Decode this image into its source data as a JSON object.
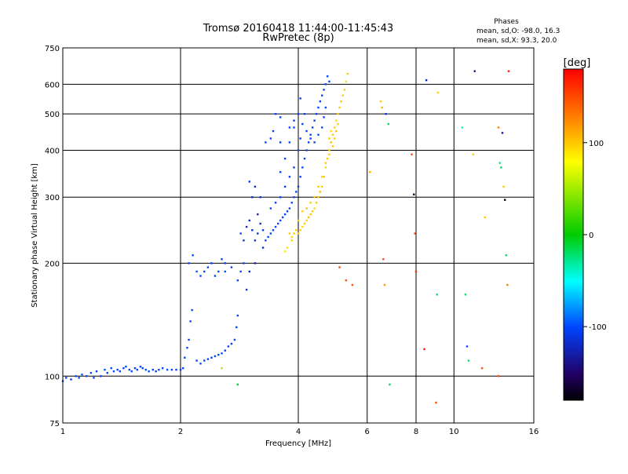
{
  "chart_data": {
    "type": "scatter",
    "title": "Tromsø 20160418 11:44:00-11:45:43",
    "subtitle": "RwPretec (8p)",
    "xlabel": "Frequency [MHz]",
    "ylabel": "Stationary phase Virtual Height [km]",
    "x_scale": "log",
    "y_scale": "log",
    "xlim": [
      1,
      16
    ],
    "ylim": [
      75,
      750
    ],
    "grid": true,
    "x_ticks": [
      1,
      2,
      4,
      6,
      8,
      10,
      16
    ],
    "x_tick_labels": [
      "1",
      "2",
      "4",
      "6",
      "8",
      "10",
      "16"
    ],
    "y_ticks": [
      75,
      100,
      200,
      300,
      400,
      500,
      600,
      750
    ],
    "y_tick_labels": [
      "75",
      "100",
      "200",
      "300",
      "400",
      "500",
      "600",
      "750"
    ],
    "phase_stats": {
      "heading": "Phases",
      "line_o": "mean, sd,O: -98.0, 16.3",
      "line_x": "mean, sd,X:  93.3, 20.0"
    },
    "colorbar": {
      "label": "[deg]",
      "range": [
        -180,
        180
      ],
      "ticks": [
        100,
        0,
        -100
      ],
      "tick_labels": [
        "100",
        "0",
        "-100"
      ]
    },
    "series": [
      {
        "note": "O-mode traces (phase about -100 deg), blue",
        "points": [
          [
            1.0,
            97,
            -100
          ],
          [
            1.02,
            99,
            -100
          ],
          [
            1.05,
            98,
            -102
          ],
          [
            1.08,
            100,
            -98
          ],
          [
            1.1,
            99,
            -100
          ],
          [
            1.12,
            101,
            -95
          ],
          [
            1.15,
            100,
            -100
          ],
          [
            1.18,
            102,
            -97
          ],
          [
            1.2,
            99,
            -100
          ],
          [
            1.22,
            103,
            -103
          ],
          [
            1.25,
            100,
            -100
          ],
          [
            1.28,
            104,
            -96
          ],
          [
            1.3,
            102,
            -100
          ],
          [
            1.33,
            105,
            -100
          ],
          [
            1.35,
            103,
            -98
          ],
          [
            1.38,
            104,
            -100
          ],
          [
            1.4,
            103,
            -102
          ],
          [
            1.43,
            105,
            -100
          ],
          [
            1.45,
            106,
            -99
          ],
          [
            1.48,
            104,
            -100
          ],
          [
            1.5,
            103,
            -97
          ],
          [
            1.53,
            105,
            -100
          ],
          [
            1.55,
            104,
            -100
          ],
          [
            1.58,
            106,
            -101
          ],
          [
            1.6,
            105,
            -100
          ],
          [
            1.63,
            104,
            -100
          ],
          [
            1.66,
            103,
            -98
          ],
          [
            1.7,
            104,
            -100
          ],
          [
            1.73,
            103,
            -102
          ],
          [
            1.76,
            104,
            -100
          ],
          [
            1.8,
            105,
            -100
          ],
          [
            1.85,
            104,
            -97
          ],
          [
            1.9,
            104,
            -100
          ],
          [
            1.95,
            104,
            -100
          ],
          [
            2.0,
            104,
            -100
          ],
          [
            2.03,
            105,
            -100
          ],
          [
            2.05,
            112,
            -101
          ],
          [
            2.08,
            119,
            -99
          ],
          [
            2.1,
            125,
            -100
          ],
          [
            2.12,
            140,
            -100
          ],
          [
            2.14,
            150,
            -100
          ],
          [
            2.2,
            110,
            -100
          ],
          [
            2.25,
            108,
            -99
          ],
          [
            2.3,
            110,
            -100
          ],
          [
            2.35,
            111,
            -100
          ],
          [
            2.4,
            112,
            -103
          ],
          [
            2.45,
            113,
            -100
          ],
          [
            2.5,
            114,
            -100
          ],
          [
            2.55,
            115,
            -98
          ],
          [
            2.6,
            117,
            -100
          ],
          [
            2.65,
            120,
            -100
          ],
          [
            2.7,
            122,
            -100
          ],
          [
            2.75,
            125,
            -99
          ],
          [
            2.78,
            135,
            -100
          ],
          [
            2.8,
            145,
            -100
          ],
          [
            2.6,
            190,
            -95
          ],
          [
            2.6,
            200,
            -100
          ],
          [
            2.55,
            205,
            -100
          ],
          [
            2.5,
            190,
            -98
          ],
          [
            2.45,
            185,
            -100
          ],
          [
            2.4,
            200,
            -100
          ],
          [
            2.35,
            195,
            -101
          ],
          [
            2.3,
            190,
            -100
          ],
          [
            2.25,
            185,
            -100
          ],
          [
            2.2,
            190,
            -95
          ],
          [
            2.15,
            210,
            -100
          ],
          [
            2.1,
            200,
            -100
          ],
          [
            2.7,
            195,
            -100
          ],
          [
            2.8,
            180,
            -100
          ],
          [
            2.85,
            190,
            -100
          ],
          [
            2.9,
            230,
            -110
          ],
          [
            2.95,
            250,
            -120
          ],
          [
            3.0,
            260,
            -125
          ],
          [
            3.05,
            245,
            -120
          ],
          [
            3.1,
            230,
            -110
          ],
          [
            3.15,
            240,
            -115
          ],
          [
            3.2,
            255,
            -120
          ],
          [
            3.25,
            245,
            -110
          ],
          [
            3.3,
            230,
            -100
          ],
          [
            3.35,
            235,
            -100
          ],
          [
            3.4,
            240,
            -100
          ],
          [
            3.45,
            245,
            -100
          ],
          [
            3.5,
            250,
            -100
          ],
          [
            3.55,
            255,
            -100
          ],
          [
            3.6,
            260,
            -100
          ],
          [
            3.65,
            265,
            -100
          ],
          [
            3.7,
            270,
            -100
          ],
          [
            3.75,
            275,
            -100
          ],
          [
            3.8,
            280,
            -100
          ],
          [
            3.85,
            290,
            -100
          ],
          [
            3.9,
            300,
            -100
          ],
          [
            3.95,
            310,
            -100
          ],
          [
            4.0,
            320,
            -100
          ],
          [
            4.05,
            340,
            -100
          ],
          [
            4.1,
            360,
            -100
          ],
          [
            4.15,
            380,
            -100
          ],
          [
            4.2,
            400,
            -100
          ],
          [
            4.25,
            420,
            -100
          ],
          [
            4.3,
            440,
            -100
          ],
          [
            4.35,
            460,
            -100
          ],
          [
            4.4,
            480,
            -100
          ],
          [
            4.45,
            500,
            -100
          ],
          [
            4.5,
            520,
            -100
          ],
          [
            4.55,
            540,
            -100
          ],
          [
            4.6,
            560,
            -100
          ],
          [
            4.65,
            580,
            -100
          ],
          [
            4.7,
            600,
            -100
          ],
          [
            4.75,
            630,
            -100
          ],
          [
            4.8,
            610,
            -100
          ],
          [
            4.0,
            400,
            -100
          ],
          [
            4.05,
            430,
            -100
          ],
          [
            4.1,
            470,
            -100
          ],
          [
            4.15,
            500,
            -100
          ],
          [
            4.2,
            450,
            -100
          ],
          [
            4.3,
            430,
            -100
          ],
          [
            4.4,
            420,
            -100
          ],
          [
            4.5,
            440,
            -100
          ],
          [
            4.6,
            460,
            -100
          ],
          [
            4.65,
            490,
            -100
          ],
          [
            4.7,
            520,
            -100
          ],
          [
            3.4,
            280,
            -100
          ],
          [
            3.5,
            290,
            -100
          ],
          [
            3.6,
            300,
            -100
          ],
          [
            3.7,
            320,
            -100
          ],
          [
            3.8,
            340,
            -100
          ],
          [
            3.9,
            360,
            -100
          ],
          [
            3.6,
            350,
            -100
          ],
          [
            3.7,
            380,
            -100
          ],
          [
            3.8,
            420,
            -100
          ],
          [
            3.9,
            460,
            -100
          ],
          [
            4.0,
            500,
            -100
          ],
          [
            4.05,
            550,
            -100
          ],
          [
            3.8,
            460,
            -100
          ],
          [
            3.9,
            480,
            -100
          ],
          [
            3.6,
            490,
            -100
          ],
          [
            3.5,
            500,
            -100
          ],
          [
            3.45,
            450,
            -100
          ],
          [
            3.4,
            430,
            -100
          ],
          [
            3.3,
            420,
            -100
          ],
          [
            3.2,
            300,
            -110
          ],
          [
            3.1,
            320,
            -115
          ],
          [
            3.0,
            330,
            -110
          ],
          [
            3.05,
            300,
            -120
          ],
          [
            3.15,
            270,
            -125
          ],
          [
            3.25,
            220,
            -120
          ],
          [
            3.1,
            200,
            -125
          ],
          [
            3.0,
            190,
            -120
          ],
          [
            2.95,
            170,
            -110
          ],
          [
            2.9,
            200,
            -100
          ],
          [
            2.85,
            240,
            -100
          ]
        ]
      },
      {
        "note": "X-mode trace (phase about +100 deg), yellow",
        "points": [
          [
            3.8,
            240,
            100
          ],
          [
            3.85,
            235,
            95
          ],
          [
            3.9,
            240,
            100
          ],
          [
            3.95,
            245,
            105
          ],
          [
            4.0,
            240,
            100
          ],
          [
            4.05,
            245,
            100
          ],
          [
            4.1,
            250,
            95
          ],
          [
            4.15,
            255,
            100
          ],
          [
            4.2,
            260,
            100
          ],
          [
            4.25,
            265,
            105
          ],
          [
            4.3,
            270,
            100
          ],
          [
            4.35,
            275,
            100
          ],
          [
            4.4,
            280,
            95
          ],
          [
            4.45,
            290,
            100
          ],
          [
            4.5,
            300,
            100
          ],
          [
            4.55,
            310,
            105
          ],
          [
            4.6,
            320,
            100
          ],
          [
            4.65,
            340,
            100
          ],
          [
            4.7,
            360,
            95
          ],
          [
            4.75,
            380,
            100
          ],
          [
            4.8,
            400,
            100
          ],
          [
            4.85,
            420,
            105
          ],
          [
            4.9,
            440,
            100
          ],
          [
            4.95,
            460,
            100
          ],
          [
            5.0,
            480,
            95
          ],
          [
            5.05,
            500,
            100
          ],
          [
            5.1,
            520,
            100
          ],
          [
            5.15,
            540,
            105
          ],
          [
            5.2,
            560,
            100
          ],
          [
            5.25,
            580,
            100
          ],
          [
            5.3,
            610,
            95
          ],
          [
            5.35,
            640,
            100
          ],
          [
            4.9,
            410,
            100
          ],
          [
            4.95,
            430,
            100
          ],
          [
            5.0,
            450,
            105
          ],
          [
            5.05,
            470,
            100
          ],
          [
            4.8,
            430,
            100
          ],
          [
            4.85,
            450,
            95
          ],
          [
            3.75,
            220,
            90
          ],
          [
            3.7,
            215,
            90
          ],
          [
            3.85,
            230,
            100
          ],
          [
            4.0,
            260,
            100
          ],
          [
            4.1,
            275,
            100
          ],
          [
            4.2,
            280,
            105
          ],
          [
            4.3,
            290,
            100
          ],
          [
            4.4,
            300,
            100
          ],
          [
            4.5,
            320,
            100
          ],
          [
            4.6,
            340,
            95
          ],
          [
            4.7,
            370,
            100
          ],
          [
            4.8,
            390,
            100
          ]
        ]
      },
      {
        "note": "Scattered isolated echoes, various phases",
        "points": [
          [
            2.55,
            105,
            50
          ],
          [
            2.8,
            95,
            -10
          ],
          [
            3.6,
            420,
            -100
          ],
          [
            5.1,
            195,
            150
          ],
          [
            5.3,
            180,
            150
          ],
          [
            5.5,
            175,
            150
          ],
          [
            6.1,
            350,
            110
          ],
          [
            6.5,
            540,
            100
          ],
          [
            6.55,
            520,
            110
          ],
          [
            6.6,
            205,
            150
          ],
          [
            6.65,
            175,
            120
          ],
          [
            6.7,
            500,
            -110
          ],
          [
            6.8,
            470,
            -20
          ],
          [
            6.85,
            95,
            -20
          ],
          [
            7.8,
            390,
            150
          ],
          [
            7.9,
            305,
            -160
          ],
          [
            7.95,
            240,
            160
          ],
          [
            8.0,
            190,
            160
          ],
          [
            8.4,
            118,
            170
          ],
          [
            8.5,
            615,
            -120
          ],
          [
            9.0,
            85,
            150
          ],
          [
            9.1,
            570,
            100
          ],
          [
            9.05,
            165,
            -20
          ],
          [
            10.5,
            460,
            -40
          ],
          [
            10.7,
            165,
            -20
          ],
          [
            10.8,
            120,
            -100
          ],
          [
            10.9,
            110,
            -20
          ],
          [
            11.2,
            390,
            100
          ],
          [
            11.3,
            650,
            -130
          ],
          [
            11.8,
            105,
            150
          ],
          [
            12.0,
            265,
            100
          ],
          [
            13.0,
            460,
            130
          ],
          [
            13.1,
            370,
            -30
          ],
          [
            13.2,
            360,
            -20
          ],
          [
            13.3,
            445,
            -130
          ],
          [
            13.4,
            320,
            100
          ],
          [
            13.5,
            295,
            -170
          ],
          [
            13.6,
            210,
            -20
          ],
          [
            13.7,
            175,
            130
          ],
          [
            13.8,
            650,
            170
          ],
          [
            13.0,
            100,
            150
          ]
        ]
      }
    ]
  }
}
